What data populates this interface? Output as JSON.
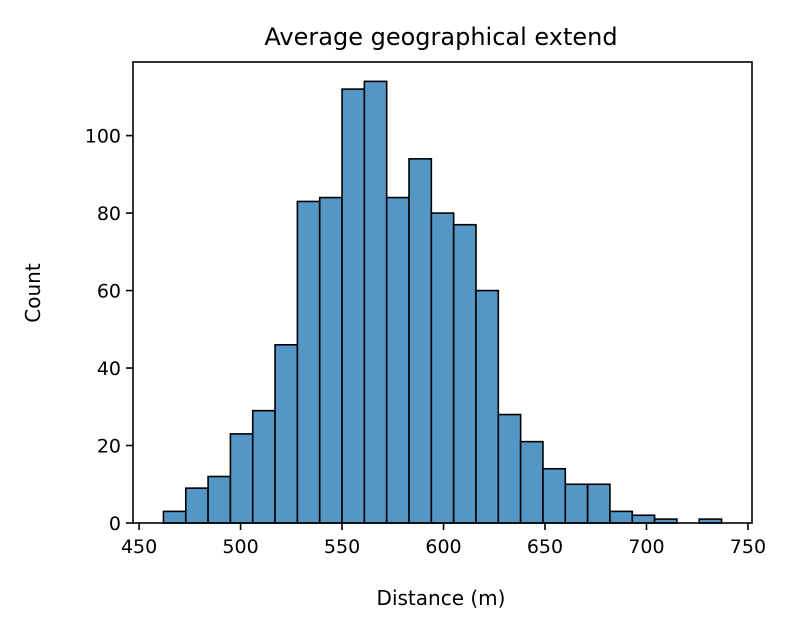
{
  "chart_data": {
    "type": "bar",
    "title": "Average geographical extend",
    "xlabel": "Distance (m)",
    "ylabel": "Count",
    "xlim": [
      447,
      752
    ],
    "ylim": [
      0,
      119
    ],
    "x_ticks": [
      450,
      500,
      550,
      600,
      650,
      700,
      750
    ],
    "y_ticks": [
      0,
      20,
      40,
      60,
      80,
      100
    ],
    "bin_edges": [
      462,
      473,
      484,
      495,
      506,
      517,
      528,
      539,
      550,
      561,
      572,
      583,
      594,
      605,
      616,
      627,
      638,
      649,
      660,
      671,
      682,
      693,
      704,
      715,
      726,
      737
    ],
    "values": [
      3,
      9,
      12,
      23,
      29,
      46,
      83,
      84,
      112,
      114,
      84,
      94,
      80,
      77,
      60,
      28,
      21,
      14,
      10,
      10,
      3,
      2,
      1,
      0,
      1
    ],
    "bar_color": "#5497c6",
    "edge_color": "#000000",
    "grid": false,
    "legend": false
  }
}
